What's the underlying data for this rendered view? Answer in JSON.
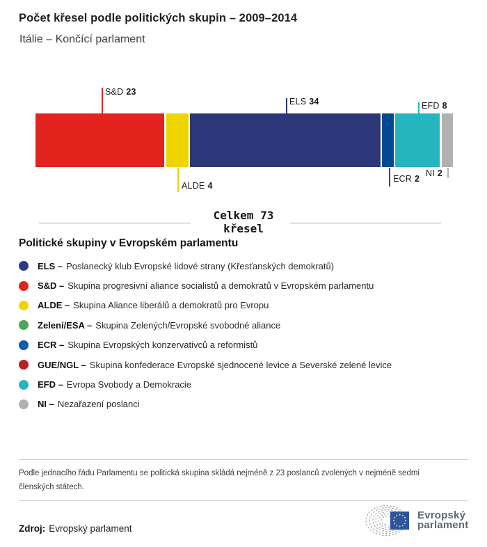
{
  "header": {
    "title": "Počet křesel podle politických skupin – 2009–2014",
    "subtitle": "Itálie – Končící parlament"
  },
  "chart_data": {
    "type": "bar",
    "stacked": true,
    "title": "Počet křesel podle politických skupin – 2009–2014",
    "subtitle": "Itálie – Končící parlament",
    "total_seats": 73,
    "total_label": "Celkem 73 křesel",
    "categories": [
      "S&D",
      "ALDE",
      "ELS",
      "ECR",
      "EFD",
      "NI"
    ],
    "values": [
      23,
      4,
      34,
      2,
      8,
      2
    ],
    "segments": [
      {
        "id": "sd",
        "label": "S&D",
        "seats": 23,
        "color": "#e2231e",
        "label_side": "top"
      },
      {
        "id": "alde",
        "label": "ALDE",
        "seats": 4,
        "color": "#eed500",
        "label_side": "bottom"
      },
      {
        "id": "els",
        "label": "ELS",
        "seats": 34,
        "color": "#2b3778",
        "label_side": "top"
      },
      {
        "id": "ecr",
        "label": "ECR",
        "seats": 2,
        "color": "#004a94",
        "label_side": "bottom"
      },
      {
        "id": "efd",
        "label": "EFD",
        "seats": 8,
        "color": "#24b5be",
        "label_side": "top"
      },
      {
        "id": "ni",
        "label": "NI",
        "seats": 2,
        "color": "#b1b1b1",
        "label_side": "bottom"
      }
    ]
  },
  "total": {
    "line1": "Celkem 73",
    "line2": "křesel"
  },
  "legend": {
    "heading": "Politické skupiny v Evropském parlamentu",
    "items": [
      {
        "abbr": "ELS –",
        "desc": "Poslanecký klub Evropské lidové strany (Křesťanských demokratů)",
        "color": "#2e3a80"
      },
      {
        "abbr": "S&D –",
        "desc": "Skupina progresivní aliance socialistů a demokratů v Evropském parlamentu",
        "color": "#e2231e"
      },
      {
        "abbr": "ALDE –",
        "desc": "Skupina Aliance liberálů a demokratů pro Evropu",
        "color": "#eed500"
      },
      {
        "abbr": "Zelení/ESA –",
        "desc": "Skupina Zelených/Evropské svobodné aliance",
        "color": "#4fa556"
      },
      {
        "abbr": "ECR –",
        "desc": "Skupina Evropských konzervativců a reformistů",
        "color": "#0f5fa8"
      },
      {
        "abbr": "GUE/NGL –",
        "desc": "Skupina konfederace Evropské sjednocené levice a Severské zelené levice",
        "color": "#bb2025"
      },
      {
        "abbr": "EFD –",
        "desc": "Evropa Svobody a Demokracie",
        "color": "#24b5be"
      },
      {
        "abbr": "NI –",
        "desc": "Nezařazení poslanci",
        "color": "#b1b1b1"
      }
    ]
  },
  "footnote": {
    "line1": "Podle jednacího řádu Parlamentu se politická skupina skládá nejméně z 23 poslanců zvolených v nejméně sedmi",
    "line2": "členských státech."
  },
  "source": {
    "label": "Zdroj:",
    "value": "Evropský parlament"
  },
  "logo": {
    "line1": "Evropský",
    "line2": "parlament",
    "flag_color": "#2b53a5",
    "star_color": "#f7d117",
    "arc_color": "#9aa0a6",
    "text_color": "#5c6770"
  }
}
